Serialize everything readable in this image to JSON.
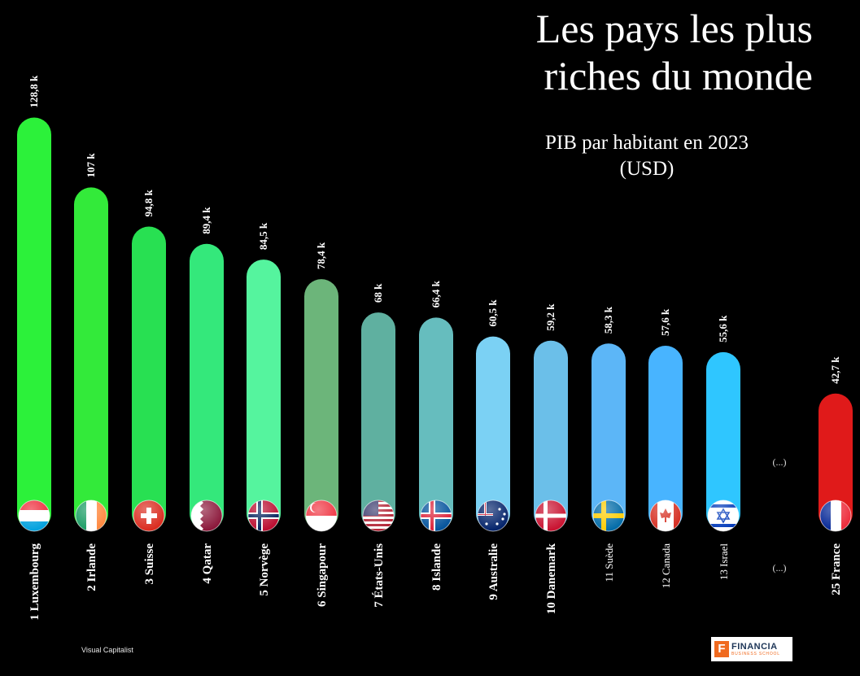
{
  "title": "Les pays les plus riches du monde",
  "subtitle": "PIB par habitant en 2023 (USD)",
  "source": "Visual Capitalist",
  "logo": {
    "name": "FINANCIA",
    "tagline": "BUSINESS SCHOOL"
  },
  "ellipsis": "(...)",
  "chart_data": {
    "type": "bar",
    "title": "Les pays les plus riches du monde",
    "subtitle": "PIB par habitant en 2023 (USD)",
    "unit": "k",
    "categories": [
      "1 Luxembourg",
      "2 Irlande",
      "3 Suisse",
      "4 Qatar",
      "5 Norvège",
      "6 Singapour",
      "7 États-Unis",
      "8 Islande",
      "9 Australie",
      "10 Danemark",
      "11 Suède",
      "12 Canada",
      "13 Israel",
      "25 France"
    ],
    "values": [
      128.8,
      107,
      94.8,
      89.4,
      84.5,
      78.4,
      68,
      66.4,
      60.5,
      59.2,
      58.3,
      57.6,
      55.6,
      42.7
    ],
    "value_labels": [
      "128,8 k",
      "107 k",
      "94,8 k",
      "89,4 k",
      "84,5 k",
      "78,4 k",
      "68 k",
      "66,4 k",
      "60,5 k",
      "59,2 k",
      "58,3 k",
      "57,6 k",
      "55,6 k",
      "42,7 k"
    ],
    "bold_labels": [
      true,
      true,
      true,
      true,
      true,
      true,
      true,
      true,
      true,
      true,
      false,
      false,
      false,
      true
    ],
    "flags": [
      "luxembourg",
      "ireland",
      "switzerland",
      "qatar",
      "norway",
      "singapore",
      "usa",
      "iceland",
      "australia",
      "denmark",
      "sweden",
      "canada",
      "israel",
      "france"
    ],
    "colors": [
      "#2cf13a",
      "#33ea3a",
      "#28e052",
      "#34e87b",
      "#55f49e",
      "#6cb57a",
      "#5fb0a0",
      "#66bdbe",
      "#7bd1f4",
      "#6bbfe9",
      "#5cb6f7",
      "#48b4ff",
      "#2fc6ff",
      "#e01a1a"
    ]
  }
}
